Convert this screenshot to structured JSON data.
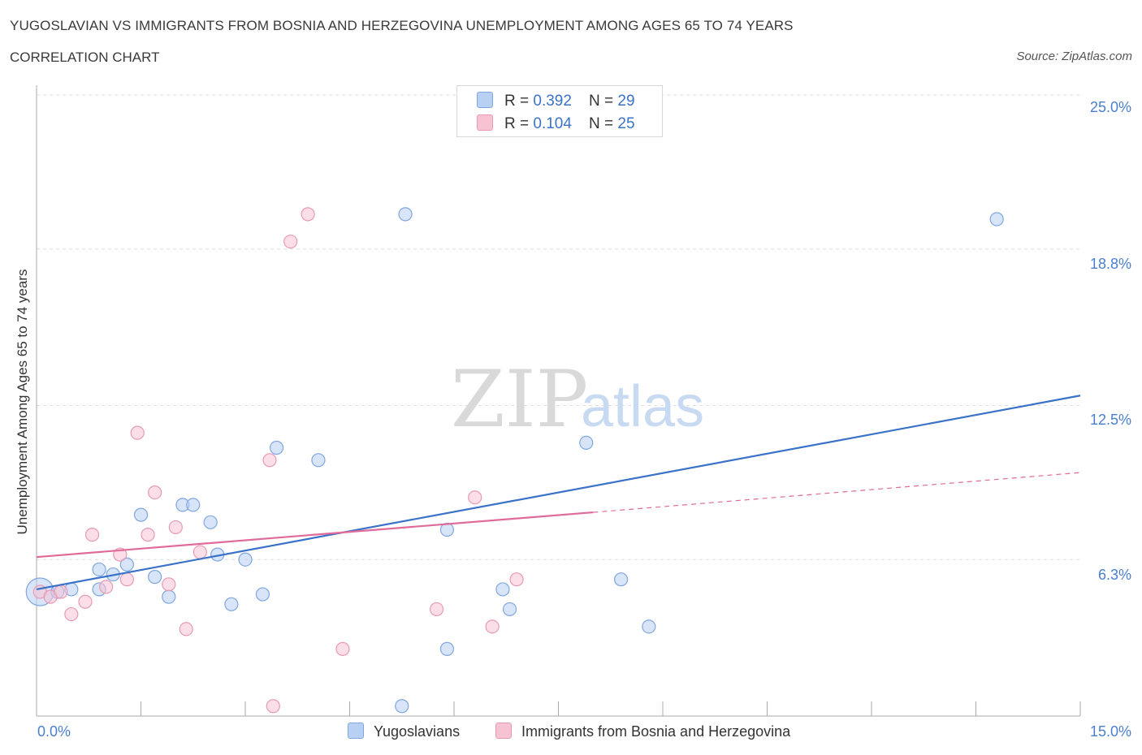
{
  "header": {
    "title": "YUGOSLAVIAN VS IMMIGRANTS FROM BOSNIA AND HERZEGOVINA UNEMPLOYMENT AMONG AGES 65 TO 74 YEARS",
    "subtitle": "CORRELATION CHART",
    "source": "Source: ZipAtlas.com"
  },
  "legend": {
    "row1": {
      "r_label": "R = ",
      "r_value": "0.392",
      "n_label": "N = ",
      "n_value": "29"
    },
    "row2": {
      "r_label": "R = ",
      "r_value": "0.104",
      "n_label": "N = ",
      "n_value": "25"
    }
  },
  "watermark": {
    "zip": "ZIP",
    "atlas": "atlas"
  },
  "colors": {
    "blue": "#3a72c8",
    "blue_fill": "#b8d0f3",
    "pink": "#e06a9a",
    "pink_fill": "#f7c3d3",
    "grid": "#dddddd"
  },
  "chart_data": {
    "type": "scatter",
    "title": "YUGOSLAVIAN VS IMMIGRANTS FROM BOSNIA AND HERZEGOVINA UNEMPLOYMENT AMONG AGES 65 TO 74 YEARS",
    "xlabel": "",
    "ylabel": "Unemployment Among Ages 65 to 74 years",
    "xlim": [
      0,
      15
    ],
    "ylim": [
      0,
      25
    ],
    "x_tick_labels": [
      "0.0%",
      "15.0%"
    ],
    "y_ticks": [
      6.3,
      12.5,
      18.8,
      25.0
    ],
    "y_tick_labels": [
      "6.3%",
      "12.5%",
      "18.8%",
      "25.0%"
    ],
    "grid": true,
    "legend_position": "top-center",
    "series": [
      {
        "name": "Yugoslavians",
        "color": "#3a72c8",
        "points": [
          [
            0.05,
            5.0
          ],
          [
            0.3,
            5.0
          ],
          [
            0.5,
            5.1
          ],
          [
            0.9,
            5.1
          ],
          [
            0.9,
            5.9
          ],
          [
            1.1,
            5.7
          ],
          [
            1.3,
            6.1
          ],
          [
            1.5,
            8.1
          ],
          [
            1.7,
            5.6
          ],
          [
            1.9,
            4.8
          ],
          [
            2.1,
            8.5
          ],
          [
            2.25,
            8.5
          ],
          [
            2.5,
            7.8
          ],
          [
            2.6,
            6.5
          ],
          [
            2.8,
            4.5
          ],
          [
            3.0,
            6.3
          ],
          [
            3.25,
            4.9
          ],
          [
            3.45,
            10.8
          ],
          [
            4.05,
            10.3
          ],
          [
            5.3,
            20.2
          ],
          [
            5.9,
            7.5
          ],
          [
            5.9,
            2.7
          ],
          [
            6.7,
            5.1
          ],
          [
            6.8,
            4.3
          ],
          [
            7.9,
            11.0
          ],
          [
            8.4,
            5.5
          ],
          [
            8.8,
            3.6
          ],
          [
            13.8,
            20.0
          ],
          [
            5.25,
            0.4
          ]
        ],
        "trend": {
          "x": [
            0,
            15
          ],
          "y": [
            5.1,
            12.9
          ]
        }
      },
      {
        "name": "Immigrants from Bosnia and Herzegovina",
        "color": "#e06a9a",
        "points": [
          [
            0.05,
            5.0
          ],
          [
            0.2,
            4.8
          ],
          [
            0.35,
            5.0
          ],
          [
            0.5,
            4.1
          ],
          [
            0.7,
            4.6
          ],
          [
            0.8,
            7.3
          ],
          [
            1.0,
            5.2
          ],
          [
            1.2,
            6.5
          ],
          [
            1.3,
            5.5
          ],
          [
            1.45,
            11.4
          ],
          [
            1.6,
            7.3
          ],
          [
            1.7,
            9.0
          ],
          [
            1.9,
            5.3
          ],
          [
            2.0,
            7.6
          ],
          [
            2.15,
            3.5
          ],
          [
            2.35,
            6.6
          ],
          [
            3.35,
            10.3
          ],
          [
            3.65,
            19.1
          ],
          [
            3.9,
            20.2
          ],
          [
            4.4,
            2.7
          ],
          [
            5.75,
            4.3
          ],
          [
            6.3,
            8.8
          ],
          [
            6.55,
            3.6
          ],
          [
            6.9,
            5.5
          ],
          [
            3.4,
            0.4
          ]
        ],
        "trend": {
          "x": [
            0,
            8.0
          ],
          "y": [
            6.4,
            8.2
          ]
        },
        "trend_extension": {
          "x": [
            8.0,
            15
          ],
          "y": [
            8.2,
            9.8
          ]
        }
      }
    ],
    "bottom_legend": [
      "Yugoslavians",
      "Immigrants from Bosnia and Herzegovina"
    ]
  }
}
